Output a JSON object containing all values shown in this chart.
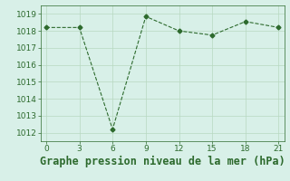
{
  "x": [
    0,
    3,
    6,
    9,
    12,
    15,
    18,
    21
  ],
  "y": [
    1018.2,
    1018.2,
    1012.2,
    1018.85,
    1018.0,
    1017.75,
    1018.55,
    1018.2
  ],
  "line_color": "#2d6a2d",
  "marker": "D",
  "marker_size": 2.5,
  "bg_color": "#d8f0e8",
  "grid_color": "#b8d8c0",
  "xlabel": "Graphe pression niveau de la mer (hPa)",
  "xlim": [
    -0.5,
    21.5
  ],
  "ylim": [
    1011.5,
    1019.5
  ],
  "xticks": [
    0,
    3,
    6,
    9,
    12,
    15,
    18,
    21
  ],
  "yticks": [
    1012,
    1013,
    1014,
    1015,
    1016,
    1017,
    1018,
    1019
  ],
  "tick_fontsize": 6.5,
  "xlabel_fontsize": 8.5
}
